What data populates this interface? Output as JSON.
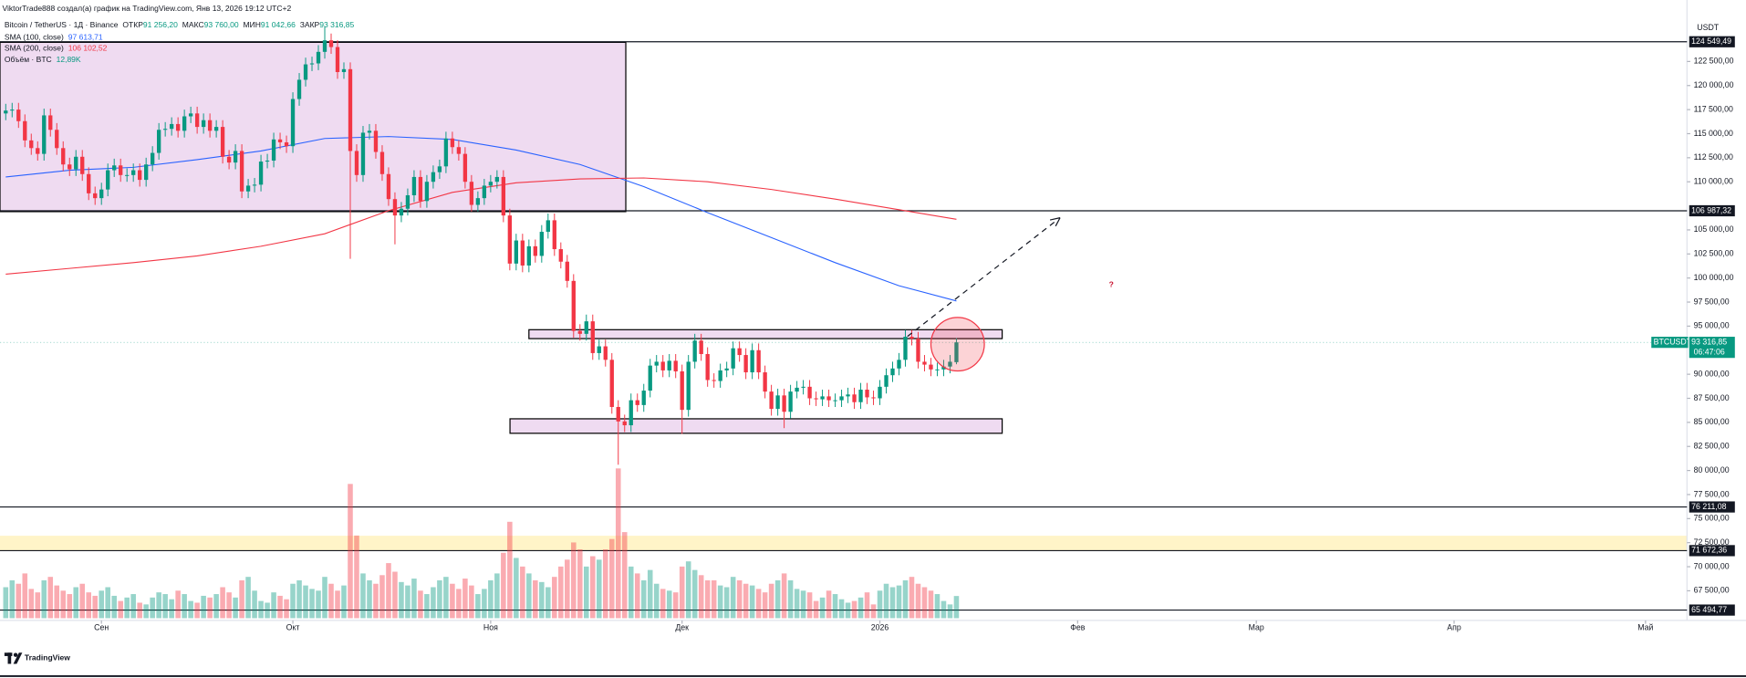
{
  "chart_data": {
    "type": "candlestick",
    "attribution": "ViktorTrade888 создал(а) график на TradingView.com, Янв 13, 2026 19:12 UTC+2",
    "symbol": "Bitcoin / TetherUS · 1Д · Binance",
    "ohlc_legend": [
      {
        "name": "ОТКР",
        "label": "91 256,20"
      },
      {
        "name": "МАКС",
        "label": "93 760,00"
      },
      {
        "name": "МИН",
        "label": "91 042,66"
      },
      {
        "name": "ЗАКР",
        "label": "93 316,85"
      }
    ],
    "up_color": "#089981",
    "down_color": "#f23645",
    "open": [
      117100,
      117400,
      117500,
      116300,
      114300,
      113500,
      112900,
      116900,
      115400,
      113500,
      111800,
      111300,
      112600,
      110800,
      108800,
      108300,
      109200,
      111200,
      111700,
      110700,
      110700,
      111200,
      110200,
      111800,
      113000,
      115400,
      115500,
      116000,
      115300,
      116800,
      117100,
      115700,
      116400,
      115300,
      115700,
      112600,
      112000,
      113200,
      109000,
      109600,
      109700,
      112100,
      112200,
      114400,
      114100,
      113700,
      118600,
      120600,
      122200,
      122300,
      123500,
      124700,
      124000,
      121400,
      121700,
      113200,
      110700,
      115100,
      115300,
      113100,
      110800,
      108200,
      106500,
      107200,
      108600,
      110500,
      108000,
      110000,
      111000,
      111600,
      114500,
      113600,
      112900,
      110000,
      107600,
      108300,
      109600,
      110000,
      110500,
      106500,
      101500,
      103900,
      101300,
      103300,
      102300,
      104800,
      106000,
      103000,
      101700,
      99700,
      94500,
      94200,
      95500,
      92200,
      92900,
      91500,
      86600,
      85100,
      84700,
      87300,
      86800,
      88300,
      90900,
      91300,
      90400,
      91400,
      90300,
      86300,
      91300,
      93500,
      92100,
      89400,
      89300,
      90400,
      90600,
      92700,
      92000,
      90200,
      92500,
      90200,
      88200,
      86400,
      87800,
      86100,
      88200,
      88600,
      88700,
      87500,
      87400,
      87700,
      87300,
      87300,
      87700,
      87900,
      87100,
      88400,
      87600,
      87500,
      88700,
      89900,
      90600,
      91500,
      93900,
      93700,
      91300,
      91000,
      90500,
      90500,
      90800,
      91256.2
    ],
    "high": [
      118100,
      118200,
      118200,
      117000,
      115000,
      114200,
      117600,
      117600,
      116100,
      114200,
      112500,
      113300,
      113300,
      111500,
      109500,
      109900,
      111900,
      112400,
      112400,
      111400,
      111900,
      111900,
      112500,
      113700,
      116100,
      116200,
      116700,
      116700,
      117500,
      117800,
      117800,
      117100,
      117100,
      116400,
      116400,
      113300,
      113900,
      113900,
      110300,
      110400,
      112800,
      112900,
      115100,
      115100,
      114800,
      119300,
      121300,
      122900,
      123000,
      124200,
      126100,
      125400,
      124700,
      122400,
      122400,
      113900,
      115800,
      116000,
      116000,
      113800,
      111500,
      108900,
      107900,
      109300,
      111200,
      111200,
      110700,
      111700,
      112300,
      115200,
      115200,
      114300,
      113600,
      110700,
      109000,
      110300,
      110700,
      111200,
      111200,
      107200,
      104600,
      104600,
      104000,
      104000,
      105500,
      106700,
      106700,
      103700,
      102400,
      100400,
      95200,
      96200,
      96200,
      93600,
      93600,
      92200,
      87300,
      85800,
      88000,
      88000,
      89000,
      91600,
      92000,
      92000,
      92100,
      92100,
      91000,
      92000,
      94200,
      94200,
      92800,
      90100,
      91100,
      91300,
      93400,
      93400,
      92700,
      93200,
      93200,
      90900,
      88900,
      88500,
      88500,
      88900,
      89300,
      89400,
      89400,
      88200,
      88400,
      88400,
      88000,
      88400,
      88600,
      88600,
      89100,
      89100,
      88300,
      89400,
      90600,
      91300,
      92200,
      94600,
      94600,
      94400,
      92000,
      91700,
      91200,
      91500,
      92000,
      93760
    ],
    "low": [
      116400,
      116700,
      115600,
      113600,
      112800,
      112200,
      112200,
      114700,
      112800,
      111100,
      110600,
      110600,
      110100,
      108100,
      107600,
      107600,
      108500,
      110500,
      110000,
      110000,
      110000,
      109500,
      109500,
      111100,
      112300,
      114700,
      114800,
      114600,
      114600,
      116100,
      115000,
      115000,
      114600,
      114600,
      111900,
      111300,
      111300,
      108300,
      108300,
      108900,
      109000,
      111400,
      111500,
      113400,
      113000,
      113000,
      117900,
      119900,
      121500,
      121600,
      122800,
      123300,
      120700,
      120700,
      102000,
      110000,
      110000,
      114400,
      112400,
      110100,
      107500,
      103500,
      105800,
      106500,
      107900,
      107300,
      107300,
      109300,
      110300,
      110900,
      112900,
      112200,
      109300,
      106900,
      106900,
      107600,
      108900,
      109300,
      105800,
      100800,
      100800,
      100600,
      100600,
      101600,
      101600,
      104100,
      102300,
      101000,
      99000,
      93800,
      93500,
      93500,
      91500,
      91500,
      90800,
      85900,
      80600,
      84000,
      84000,
      86100,
      86100,
      87600,
      90200,
      89700,
      89700,
      89600,
      83800,
      85600,
      90600,
      91400,
      88700,
      88600,
      88600,
      89700,
      89900,
      91300,
      89500,
      89500,
      89500,
      87500,
      85700,
      85700,
      84400,
      85400,
      87500,
      87900,
      86800,
      86700,
      86700,
      86600,
      86600,
      86600,
      87000,
      86400,
      86400,
      86900,
      86800,
      86800,
      88000,
      89200,
      89900,
      90800,
      93000,
      90600,
      90300,
      89800,
      89800,
      89800,
      90100,
      91042.66
    ],
    "close": [
      117400,
      117500,
      116300,
      114300,
      113500,
      112900,
      116900,
      115400,
      113500,
      111800,
      111300,
      112600,
      110800,
      108800,
      108300,
      109200,
      111200,
      111700,
      110700,
      110700,
      111200,
      110200,
      111800,
      113000,
      115400,
      115500,
      116000,
      115300,
      116800,
      117100,
      115700,
      116400,
      115300,
      115700,
      112600,
      112000,
      113200,
      109000,
      109600,
      109700,
      112100,
      112200,
      114400,
      114100,
      113700,
      118600,
      120600,
      122200,
      122300,
      123500,
      124700,
      124000,
      121400,
      121700,
      113200,
      110700,
      115100,
      115300,
      113100,
      110800,
      108200,
      106500,
      107200,
      108600,
      110500,
      108000,
      110000,
      111000,
      111600,
      114500,
      113600,
      112900,
      110000,
      107600,
      108300,
      109600,
      110000,
      110500,
      106500,
      101500,
      103900,
      101300,
      103300,
      102300,
      104800,
      106000,
      103000,
      101700,
      99700,
      94500,
      94200,
      95500,
      92200,
      92900,
      91500,
      86600,
      85100,
      84700,
      87300,
      86800,
      88300,
      90900,
      91300,
      90400,
      91400,
      90300,
      86300,
      91300,
      93500,
      92100,
      89400,
      89300,
      90400,
      90600,
      92700,
      92000,
      90200,
      92500,
      90200,
      88200,
      86400,
      87800,
      86100,
      88200,
      88600,
      88700,
      87500,
      87400,
      87700,
      87300,
      87300,
      87700,
      87900,
      87100,
      88400,
      87600,
      87500,
      88700,
      89900,
      90600,
      91500,
      93900,
      93700,
      91300,
      91000,
      90500,
      90500,
      90800,
      91300,
      93316.85
    ],
    "volume": [
      18000,
      22000,
      20000,
      26000,
      17000,
      15000,
      22000,
      24000,
      19000,
      16000,
      14000,
      18000,
      20000,
      15000,
      13000,
      16000,
      18000,
      13000,
      10000,
      12000,
      14000,
      9000,
      8000,
      12000,
      15000,
      14000,
      11000,
      16000,
      14000,
      10000,
      9000,
      13000,
      12000,
      14000,
      18000,
      15000,
      12000,
      22000,
      24000,
      16000,
      10000,
      9000,
      15000,
      13000,
      11000,
      20000,
      22000,
      19000,
      17000,
      16000,
      24000,
      20000,
      16000,
      19000,
      78000,
      48000,
      26000,
      22000,
      20000,
      25000,
      32000,
      27000,
      21000,
      19000,
      23000,
      16000,
      14000,
      18000,
      22000,
      24000,
      20000,
      17000,
      23000,
      19000,
      14000,
      17000,
      22000,
      26000,
      38000,
      56000,
      35000,
      30000,
      26000,
      22000,
      21000,
      18000,
      24000,
      30000,
      34000,
      44000,
      40000,
      30000,
      36000,
      34000,
      40000,
      46000,
      87000,
      50000,
      30000,
      26000,
      22000,
      28000,
      20000,
      17000,
      16000,
      15000,
      30000,
      33000,
      28000,
      25000,
      22000,
      22000,
      19000,
      18000,
      24000,
      22000,
      20000,
      19000,
      17000,
      15000,
      20000,
      22000,
      26000,
      22000,
      17000,
      16000,
      15000,
      10000,
      12000,
      16000,
      14000,
      11000,
      9000,
      10000,
      12000,
      15000,
      8000,
      16000,
      20000,
      18000,
      19000,
      22000,
      24000,
      20000,
      18000,
      16000,
      14000,
      10000,
      8000,
      12890
    ],
    "volume_ylim": [
      0,
      110000
    ],
    "volume_legend": {
      "name": "Объём · BTC",
      "label": "12,89K"
    },
    "indicators": [
      {
        "name": "SMA (100, close)",
        "color": "#2962ff",
        "value_label": "97 613,71",
        "x": [
          0,
          10,
          20,
          30,
          40,
          50,
          60,
          70,
          80,
          90,
          100,
          110,
          120,
          130,
          140,
          149
        ],
        "values": [
          110500,
          111200,
          111500,
          112300,
          113200,
          114500,
          114700,
          114400,
          113300,
          111800,
          109500,
          106800,
          104200,
          101600,
          99200,
          97613.71
        ]
      },
      {
        "name": "SMA (200, close)",
        "color": "#f23645",
        "value_label": "106 102,52",
        "x": [
          0,
          10,
          20,
          30,
          40,
          50,
          60,
          70,
          80,
          90,
          100,
          110,
          120,
          130,
          140,
          149
        ],
        "values": [
          100400,
          101000,
          101600,
          102300,
          103300,
          104600,
          107000,
          108900,
          109900,
          110300,
          110400,
          110000,
          109200,
          108200,
          107100,
          106102.52
        ]
      }
    ],
    "currency": "USDT",
    "symbol_tag": "BTCUSDT",
    "last_label": "93 316,85",
    "countdown": "06:47:06",
    "xlim": [
      -0.9,
      263.5
    ],
    "xticks": [
      {
        "value": 15,
        "label": "Сен"
      },
      {
        "value": 45,
        "label": "Окт"
      },
      {
        "value": 76,
        "label": "Ноя"
      },
      {
        "value": 106,
        "label": "Дек"
      },
      {
        "value": 137,
        "label": "2026"
      },
      {
        "value": 168,
        "label": "Фев"
      },
      {
        "value": 196,
        "label": "Мар"
      },
      {
        "value": 227,
        "label": "Апр"
      },
      {
        "value": 257,
        "label": "Май"
      }
    ],
    "ylim": [
      64653,
      128889
    ],
    "yticks": [
      {
        "value": 122500,
        "label": "122 500,00"
      },
      {
        "value": 120000,
        "label": "120 000,00"
      },
      {
        "value": 117500,
        "label": "117 500,00"
      },
      {
        "value": 115000,
        "label": "115 000,00"
      },
      {
        "value": 112500,
        "label": "112 500,00"
      },
      {
        "value": 110000,
        "label": "110 000,00"
      },
      {
        "value": 105000,
        "label": "105 000,00"
      },
      {
        "value": 102500,
        "label": "102 500,00"
      },
      {
        "value": 100000,
        "label": "100 000,00"
      },
      {
        "value": 97500,
        "label": "97 500,00"
      },
      {
        "value": 95000,
        "label": "95 000,00"
      },
      {
        "value": 90000,
        "label": "90 000,00"
      },
      {
        "value": 87500,
        "label": "87 500,00"
      },
      {
        "value": 85000,
        "label": "85 000,00"
      },
      {
        "value": 82500,
        "label": "82 500,00"
      },
      {
        "value": 80000,
        "label": "80 000,00"
      },
      {
        "value": 77500,
        "label": "77 500,00"
      },
      {
        "value": 75000,
        "label": "75 000,00"
      },
      {
        "value": 72500,
        "label": "72 500,00"
      },
      {
        "value": 70000,
        "label": "70 000,00"
      },
      {
        "value": 67500,
        "label": "67 500,00"
      }
    ],
    "levels": [
      {
        "value": 124549.49,
        "label": "124 549,49"
      },
      {
        "value": 106987.32,
        "label": "106 987,32"
      },
      {
        "value": 76211.08,
        "label": "76 211,08"
      },
      {
        "value": 71672.36,
        "label": "71 672,36"
      },
      {
        "value": 65494.77,
        "label": "65 494,77"
      }
    ],
    "grid": false,
    "annotation": "?",
    "logo": "TradingView"
  }
}
